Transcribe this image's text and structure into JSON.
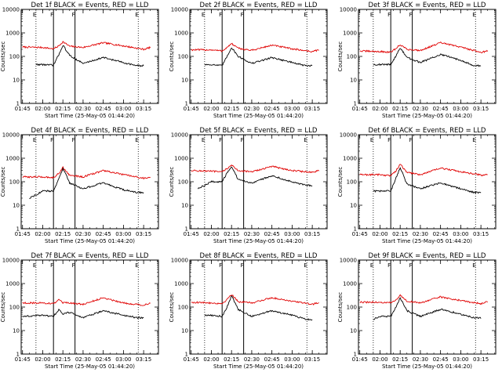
{
  "figure": {
    "x_tick_labels": [
      "01:45",
      "02:00",
      "02:15",
      "02:30",
      "02:45",
      "03:00",
      "03:15"
    ],
    "y_tick_labels": [
      "1",
      "10",
      "100",
      "1000",
      "10000"
    ],
    "event_color": "#000000",
    "lld_color": "#e00000"
  },
  "chart_data": [
    {
      "type": "line",
      "title": "Det 1f BLACK = Events, RED = LLD",
      "xlabel": "Start Time (25-May-05 01:44:20)",
      "ylabel": "Counts/sec",
      "y_scale": "log",
      "ylim": [
        1,
        10000
      ],
      "xlim": [
        "01:44",
        "03:26"
      ],
      "markers": [
        "E",
        "F",
        "F",
        "E"
      ],
      "vlines": {
        "dotted": [
          "01:55",
          "03:11"
        ],
        "solid": [
          "02:08",
          "02:24"
        ]
      },
      "series": [
        {
          "color": "#e00000",
          "x": [
            "01:45",
            "02:00",
            "02:08",
            "02:12",
            "02:15",
            "02:20",
            "02:30",
            "02:45",
            "03:00",
            "03:15",
            "03:20"
          ],
          "values": [
            250,
            240,
            210,
            280,
            420,
            270,
            240,
            380,
            280,
            200,
            240
          ]
        },
        {
          "color": "#000000",
          "x": [
            "01:55",
            "02:00",
            "02:08",
            "02:12",
            "02:15",
            "02:20",
            "02:30",
            "02:45",
            "03:00",
            "03:10",
            "03:15"
          ],
          "values": [
            45,
            45,
            42,
            120,
            300,
            110,
            50,
            90,
            55,
            40,
            40
          ]
        }
      ]
    },
    {
      "type": "line",
      "title": "Det 2f BLACK = Events, RED = LLD",
      "xlabel": "Start Time (25-May-05 01:44:20)",
      "ylabel": "Counts/sec",
      "y_scale": "log",
      "ylim": [
        1,
        10000
      ],
      "xlim": [
        "01:44",
        "03:26"
      ],
      "markers": [
        "E",
        "F",
        "F",
        "E"
      ],
      "vlines": {
        "dotted": [
          "01:55",
          "03:11"
        ],
        "solid": [
          "02:08",
          "02:24"
        ]
      },
      "series": [
        {
          "color": "#e00000",
          "x": [
            "01:45",
            "02:00",
            "02:08",
            "02:12",
            "02:15",
            "02:20",
            "02:30",
            "02:45",
            "03:00",
            "03:15",
            "03:20"
          ],
          "values": [
            190,
            190,
            170,
            250,
            350,
            220,
            180,
            300,
            210,
            160,
            190
          ]
        },
        {
          "color": "#000000",
          "x": [
            "01:55",
            "02:00",
            "02:08",
            "02:12",
            "02:15",
            "02:20",
            "02:30",
            "02:45",
            "03:00",
            "03:10",
            "03:15"
          ],
          "values": [
            45,
            45,
            40,
            110,
            240,
            100,
            50,
            90,
            55,
            40,
            40
          ]
        }
      ]
    },
    {
      "type": "line",
      "title": "Det 3f BLACK = Events, RED = LLD",
      "xlabel": "Start Time (25-May-05 01:44:20)",
      "ylabel": "Counts/sec",
      "y_scale": "log",
      "ylim": [
        1,
        10000
      ],
      "xlim": [
        "01:44",
        "03:26"
      ],
      "markers": [
        "E",
        "F",
        "F",
        "E"
      ],
      "vlines": {
        "dotted": [
          "01:55",
          "03:11"
        ],
        "solid": [
          "02:08",
          "02:24"
        ]
      },
      "series": [
        {
          "color": "#e00000",
          "x": [
            "01:45",
            "02:00",
            "02:08",
            "02:12",
            "02:15",
            "02:20",
            "02:30",
            "02:45",
            "03:00",
            "03:15",
            "03:20"
          ],
          "values": [
            170,
            160,
            150,
            220,
            320,
            200,
            180,
            380,
            250,
            150,
            170
          ]
        },
        {
          "color": "#000000",
          "x": [
            "01:55",
            "02:00",
            "02:08",
            "02:12",
            "02:15",
            "02:20",
            "02:30",
            "02:45",
            "03:00",
            "03:10",
            "03:15"
          ],
          "values": [
            45,
            45,
            45,
            110,
            230,
            90,
            55,
            120,
            70,
            40,
            40
          ]
        }
      ]
    },
    {
      "type": "line",
      "title": "Det 4f BLACK = Events, RED = LLD",
      "xlabel": "Start Time (25-May-05 01:44:20)",
      "ylabel": "Counts/sec",
      "y_scale": "log",
      "ylim": [
        1,
        10000
      ],
      "xlim": [
        "01:44",
        "03:26"
      ],
      "markers": [
        "E",
        "F",
        "F",
        "E"
      ],
      "vlines": {
        "dotted": [
          "01:55",
          "03:11"
        ],
        "solid": [
          "02:08",
          "02:24"
        ]
      },
      "series": [
        {
          "color": "#e00000",
          "x": [
            "01:45",
            "02:00",
            "02:08",
            "02:12",
            "02:15",
            "02:20",
            "02:30",
            "02:45",
            "03:00",
            "03:15",
            "03:20"
          ],
          "values": [
            160,
            160,
            150,
            230,
            400,
            190,
            160,
            300,
            200,
            140,
            160
          ]
        },
        {
          "color": "#000000",
          "x": [
            "01:50",
            "02:00",
            "02:08",
            "02:12",
            "02:15",
            "02:20",
            "02:30",
            "02:45",
            "03:00",
            "03:10",
            "03:15"
          ],
          "values": [
            20,
            40,
            40,
            130,
            380,
            90,
            50,
            90,
            45,
            35,
            35
          ]
        }
      ]
    },
    {
      "type": "line",
      "title": "Det 5f BLACK = Events, RED = LLD",
      "xlabel": "Start Time (25-May-05 01:44:20)",
      "ylabel": "Counts/sec",
      "y_scale": "log",
      "ylim": [
        1,
        10000
      ],
      "xlim": [
        "01:44",
        "03:26"
      ],
      "markers": [
        "E",
        "F",
        "F",
        "E"
      ],
      "vlines": {
        "dotted": [
          "01:55",
          "03:11"
        ],
        "solid": [
          "02:08",
          "02:24"
        ]
      },
      "series": [
        {
          "color": "#e00000",
          "x": [
            "01:45",
            "02:00",
            "02:08",
            "02:12",
            "02:15",
            "02:20",
            "02:30",
            "02:45",
            "03:00",
            "03:15",
            "03:20"
          ],
          "values": [
            300,
            280,
            260,
            380,
            500,
            300,
            260,
            450,
            300,
            250,
            300
          ]
        },
        {
          "color": "#000000",
          "x": [
            "01:50",
            "02:00",
            "02:08",
            "02:12",
            "02:15",
            "02:20",
            "02:30",
            "02:45",
            "03:00",
            "03:10",
            "03:15"
          ],
          "values": [
            50,
            100,
            100,
            250,
            450,
            120,
            90,
            180,
            100,
            70,
            70
          ]
        }
      ]
    },
    {
      "type": "line",
      "title": "Det 6f BLACK = Events, RED = LLD",
      "xlabel": "Start Time (25-May-05 01:44:20)",
      "ylabel": "Counts/sec",
      "y_scale": "log",
      "ylim": [
        1,
        10000
      ],
      "xlim": [
        "01:44",
        "03:26"
      ],
      "markers": [
        "E",
        "F",
        "F",
        "E"
      ],
      "vlines": {
        "dotted": [
          "01:55",
          "03:11"
        ],
        "solid": [
          "02:08",
          "02:24"
        ]
      },
      "series": [
        {
          "color": "#e00000",
          "x": [
            "01:45",
            "02:00",
            "02:08",
            "02:12",
            "02:15",
            "02:20",
            "02:30",
            "02:45",
            "03:00",
            "03:15",
            "03:20"
          ],
          "values": [
            200,
            200,
            180,
            300,
            550,
            250,
            200,
            380,
            270,
            190,
            210
          ]
        },
        {
          "color": "#000000",
          "x": [
            "01:55",
            "02:00",
            "02:08",
            "02:12",
            "02:15",
            "02:20",
            "02:30",
            "02:45",
            "03:00",
            "03:10",
            "03:15"
          ],
          "values": [
            40,
            40,
            40,
            150,
            400,
            80,
            50,
            90,
            50,
            35,
            35
          ]
        }
      ]
    },
    {
      "type": "line",
      "title": "Det 7f BLACK = Events, RED = LLD",
      "xlabel": "Start Time (25-May-05 01:44:20)",
      "ylabel": "Counts/sec",
      "y_scale": "log",
      "ylim": [
        1,
        10000
      ],
      "xlim": [
        "01:44",
        "03:26"
      ],
      "markers": [
        "E",
        "F",
        "F",
        "E"
      ],
      "vlines": {
        "dotted": [
          "01:55",
          "03:11"
        ],
        "solid": [
          "02:08",
          "02:24"
        ]
      },
      "series": [
        {
          "color": "#e00000",
          "x": [
            "01:45",
            "02:00",
            "02:08",
            "02:12",
            "02:15",
            "02:20",
            "02:30",
            "02:45",
            "03:00",
            "03:15",
            "03:20"
          ],
          "values": [
            150,
            150,
            140,
            200,
            150,
            150,
            130,
            250,
            150,
            120,
            150
          ]
        },
        {
          "color": "#000000",
          "x": [
            "01:45",
            "02:00",
            "02:08",
            "02:12",
            "02:15",
            "02:20",
            "02:30",
            "02:45",
            "03:00",
            "03:10",
            "03:15"
          ],
          "values": [
            40,
            45,
            40,
            80,
            50,
            60,
            35,
            70,
            45,
            35,
            35
          ]
        }
      ]
    },
    {
      "type": "line",
      "title": "Det 8f BLACK = Events, RED = LLD",
      "xlabel": "Start Time (25-May-05 01:44:20)",
      "ylabel": "Counts/sec",
      "y_scale": "log",
      "ylim": [
        1,
        10000
      ],
      "xlim": [
        "01:44",
        "03:26"
      ],
      "markers": [
        "E",
        "F",
        "F",
        "E"
      ],
      "vlines": {
        "dotted": [
          "01:55",
          "03:11"
        ],
        "solid": [
          "02:08",
          "02:24"
        ]
      },
      "series": [
        {
          "color": "#e00000",
          "x": [
            "01:45",
            "02:00",
            "02:08",
            "02:12",
            "02:15",
            "02:20",
            "02:30",
            "02:45",
            "03:00",
            "03:15",
            "03:20"
          ],
          "values": [
            160,
            150,
            140,
            220,
            350,
            170,
            150,
            250,
            180,
            130,
            160
          ]
        },
        {
          "color": "#000000",
          "x": [
            "01:55",
            "02:00",
            "02:08",
            "02:12",
            "02:15",
            "02:20",
            "02:30",
            "02:45",
            "03:00",
            "03:10",
            "03:15"
          ],
          "values": [
            45,
            45,
            40,
            110,
            300,
            80,
            40,
            70,
            45,
            30,
            30
          ]
        }
      ]
    },
    {
      "type": "line",
      "title": "Det 9f BLACK = Events, RED = LLD",
      "xlabel": "Start Time (25-May-05 01:44:20)",
      "ylabel": "Counts/sec",
      "y_scale": "log",
      "ylim": [
        1,
        10000
      ],
      "xlim": [
        "01:44",
        "03:26"
      ],
      "markers": [
        "E",
        "F",
        "F",
        "E"
      ],
      "vlines": {
        "dotted": [
          "01:55",
          "03:11"
        ],
        "solid": [
          "02:08",
          "02:24"
        ]
      },
      "series": [
        {
          "color": "#e00000",
          "x": [
            "01:45",
            "02:00",
            "02:08",
            "02:12",
            "02:15",
            "02:20",
            "02:30",
            "02:45",
            "03:00",
            "03:15",
            "03:20"
          ],
          "values": [
            160,
            160,
            150,
            200,
            320,
            180,
            150,
            270,
            190,
            140,
            170
          ]
        },
        {
          "color": "#000000",
          "x": [
            "01:55",
            "02:00",
            "02:08",
            "02:12",
            "02:15",
            "02:20",
            "02:30",
            "02:45",
            "03:00",
            "03:10",
            "03:15"
          ],
          "values": [
            30,
            40,
            40,
            100,
            250,
            70,
            40,
            80,
            50,
            35,
            35
          ]
        }
      ]
    }
  ]
}
